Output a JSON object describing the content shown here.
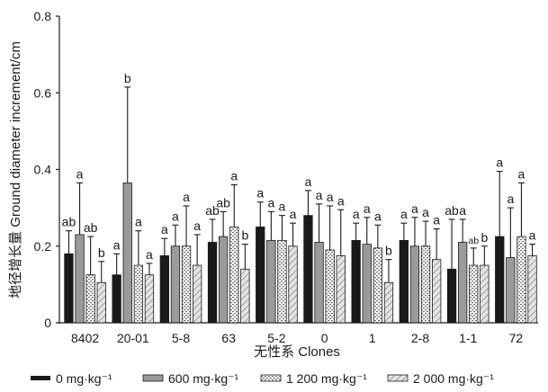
{
  "chart_data": {
    "type": "bar",
    "ylabel": "地径增长量 Ground diameter increment/cm",
    "xlabel": "无性系 Clones",
    "ylim": [
      0,
      0.8
    ],
    "yticks": [
      "0",
      "0.2",
      "0.4",
      "0.6",
      "0.8"
    ],
    "categories": [
      "8402",
      "20-01",
      "5-8",
      "63",
      "5-2",
      "0",
      "1",
      "2-8",
      "1-1",
      "72"
    ],
    "series": [
      {
        "name": "0 mg·kg⁻¹",
        "color": "#1a1a1a",
        "pattern": "solid-black",
        "values": [
          0.18,
          0.125,
          0.175,
          0.21,
          0.25,
          0.28,
          0.215,
          0.215,
          0.14,
          0.225
        ],
        "errors": [
          0.06,
          0.055,
          0.045,
          0.06,
          0.065,
          0.065,
          0.045,
          0.045,
          0.13,
          0.17
        ],
        "labels": [
          "ab",
          "a",
          "a",
          "ab",
          "a",
          "a",
          "a",
          "a",
          "ab",
          "a"
        ]
      },
      {
        "name": "600 mg·kg⁻¹",
        "color": "#9a9a9a",
        "pattern": "solid-gray",
        "values": [
          0.23,
          0.365,
          0.2,
          0.225,
          0.215,
          0.21,
          0.205,
          0.2,
          0.21,
          0.17
        ],
        "errors": [
          0.135,
          0.25,
          0.055,
          0.065,
          0.075,
          0.1,
          0.07,
          0.075,
          0.06,
          0.13
        ],
        "labels": [
          "a",
          "b",
          "a",
          "ab",
          "a",
          "a",
          "a",
          "a",
          "a",
          "a"
        ]
      },
      {
        "name": "1 200 mg·kg⁻¹",
        "color": "#ffffff",
        "pattern": "dots",
        "values": [
          0.125,
          0.15,
          0.2,
          0.25,
          0.215,
          0.19,
          0.195,
          0.2,
          0.15,
          0.225
        ],
        "errors": [
          0.1,
          0.09,
          0.105,
          0.11,
          0.065,
          0.115,
          0.06,
          0.065,
          0.045,
          0.14
        ],
        "labels": [
          "ab",
          "a",
          "a",
          "a",
          "a",
          "a",
          "a",
          "a",
          "ab",
          "a"
        ]
      },
      {
        "name": "2 000 mg·kg⁻¹",
        "color": "#d8d8d8",
        "pattern": "diagonal",
        "values": [
          0.105,
          0.125,
          0.15,
          0.14,
          0.2,
          0.175,
          0.105,
          0.165,
          0.15,
          0.175
        ],
        "errors": [
          0.055,
          0.03,
          0.08,
          0.065,
          0.06,
          0.12,
          0.06,
          0.08,
          0.05,
          0.03
        ],
        "labels": [
          "b",
          "a",
          "a",
          "b",
          "a",
          "a",
          "b",
          "a",
          "b",
          "a"
        ]
      }
    ]
  }
}
